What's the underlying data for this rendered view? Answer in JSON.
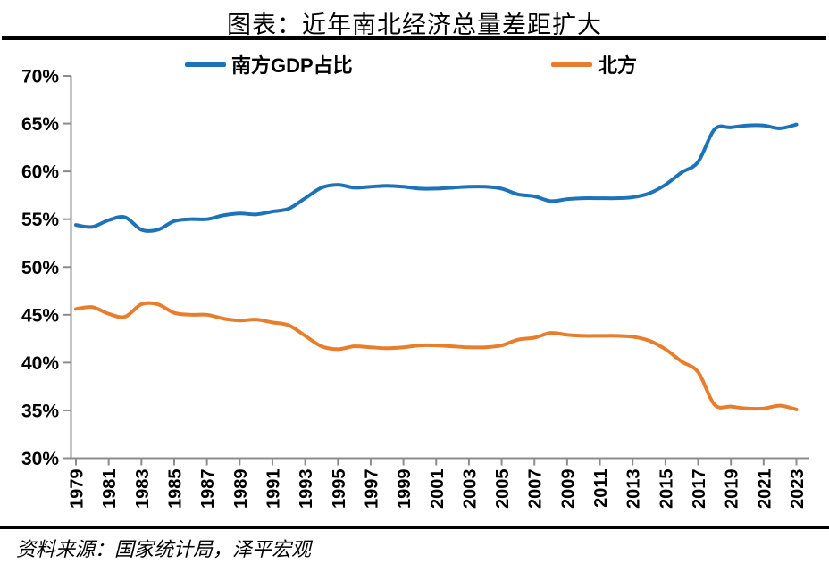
{
  "title": "图表：近年南北经济总量差距扩大",
  "source": "资料来源：国家统计局，泽平宏观",
  "legend": [
    {
      "label": "南方GDP占比",
      "color": "#1E73B8"
    },
    {
      "label": "北方",
      "color": "#E87D2B"
    }
  ],
  "colors": {
    "south_line": "#1E73B8",
    "north_line": "#E87D2B",
    "axis": "#8C8C8C",
    "divider": "#000000",
    "text": "#000000"
  },
  "chart_data": {
    "type": "line",
    "title": "图表：近年南北经济总量差距扩大",
    "xlabel": "",
    "ylabel": "",
    "grid": false,
    "legend_position": "top",
    "smooth": true,
    "ylim": [
      30,
      70
    ],
    "y_ticks": [
      {
        "value": 70,
        "label": "70%"
      },
      {
        "value": 65,
        "label": "65%"
      },
      {
        "value": 60,
        "label": "60%"
      },
      {
        "value": 55,
        "label": "55%"
      },
      {
        "value": 50,
        "label": "50%"
      },
      {
        "value": 45,
        "label": "45%"
      },
      {
        "value": 40,
        "label": "40%"
      },
      {
        "value": 35,
        "label": "35%"
      },
      {
        "value": 30,
        "label": "30%"
      }
    ],
    "x_ticks": [
      1979,
      1981,
      1983,
      1985,
      1987,
      1989,
      1991,
      1993,
      1995,
      1997,
      1999,
      2001,
      2003,
      2005,
      2007,
      2009,
      2011,
      2013,
      2015,
      2017,
      2019,
      2021,
      2023
    ],
    "x": [
      1979,
      1980,
      1981,
      1982,
      1983,
      1984,
      1985,
      1986,
      1987,
      1988,
      1989,
      1990,
      1991,
      1992,
      1993,
      1994,
      1995,
      1996,
      1997,
      1998,
      1999,
      2000,
      2001,
      2002,
      2003,
      2004,
      2005,
      2006,
      2007,
      2008,
      2009,
      2010,
      2011,
      2012,
      2013,
      2014,
      2015,
      2016,
      2017,
      2018,
      2019,
      2020,
      2021,
      2022,
      2023
    ],
    "series": [
      {
        "name": "南方GDP占比",
        "color": "#1E73B8",
        "values": [
          54.4,
          54.2,
          54.9,
          55.2,
          53.9,
          53.9,
          54.8,
          55.0,
          55.0,
          55.4,
          55.6,
          55.5,
          55.8,
          56.1,
          57.2,
          58.3,
          58.6,
          58.3,
          58.4,
          58.5,
          58.4,
          58.2,
          58.2,
          58.3,
          58.4,
          58.4,
          58.2,
          57.6,
          57.4,
          56.9,
          57.1,
          57.2,
          57.2,
          57.2,
          57.3,
          57.7,
          58.6,
          59.9,
          61.0,
          64.4,
          64.6,
          64.8,
          64.8,
          64.5,
          64.9
        ]
      },
      {
        "name": "北方",
        "color": "#E87D2B",
        "values": [
          45.6,
          45.8,
          45.1,
          44.8,
          46.1,
          46.1,
          45.2,
          45.0,
          45.0,
          44.6,
          44.4,
          44.5,
          44.2,
          43.9,
          42.8,
          41.7,
          41.4,
          41.7,
          41.6,
          41.5,
          41.6,
          41.8,
          41.8,
          41.7,
          41.6,
          41.6,
          41.8,
          42.4,
          42.6,
          43.1,
          42.9,
          42.8,
          42.8,
          42.8,
          42.7,
          42.3,
          41.4,
          40.1,
          39.0,
          35.6,
          35.4,
          35.2,
          35.2,
          35.5,
          35.1
        ]
      }
    ]
  }
}
